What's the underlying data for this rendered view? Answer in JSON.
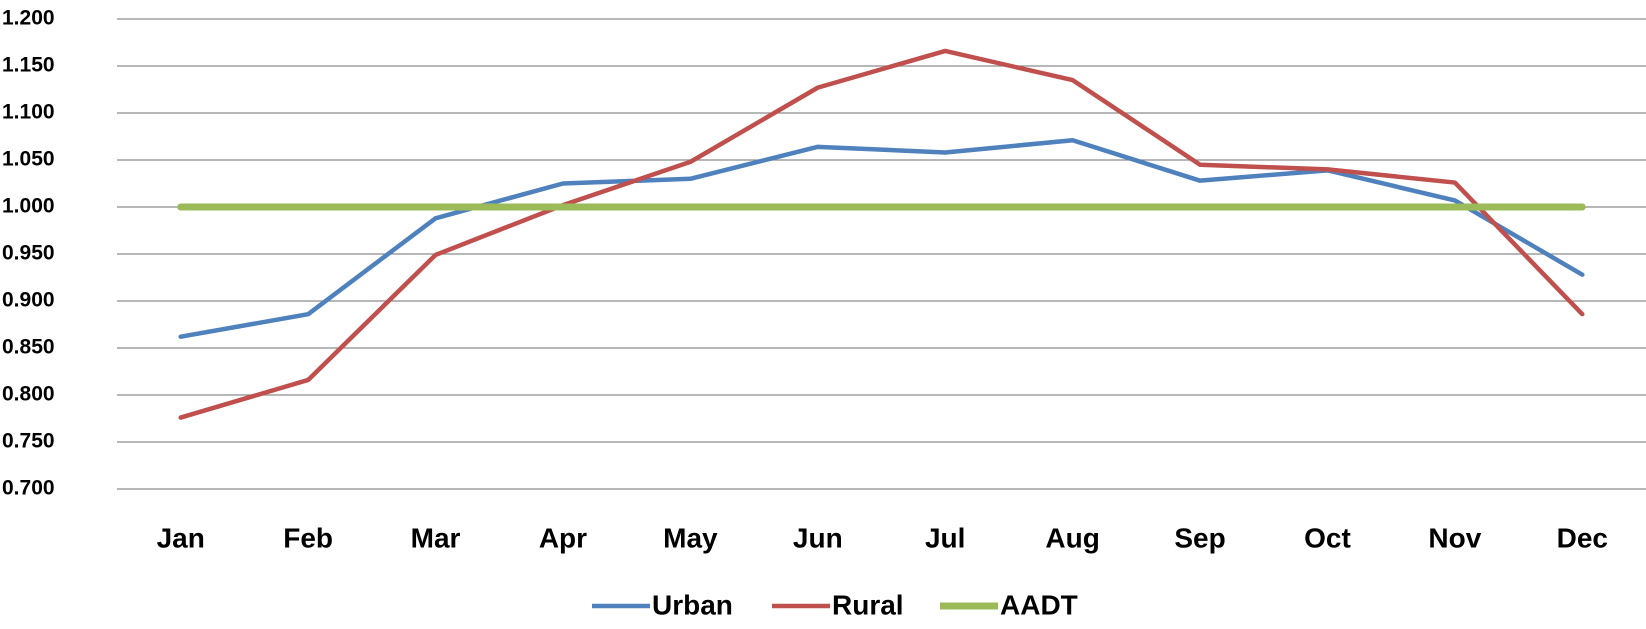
{
  "chart_data": {
    "type": "line",
    "categories": [
      "Jan",
      "Feb",
      "Mar",
      "Apr",
      "May",
      "Jun",
      "Jul",
      "Aug",
      "Sep",
      "Oct",
      "Nov",
      "Dec"
    ],
    "series": [
      {
        "name": "Urban",
        "color": "#4f81bd",
        "values": [
          0.862,
          0.886,
          0.988,
          1.025,
          1.03,
          1.064,
          1.058,
          1.071,
          1.028,
          1.039,
          1.007,
          0.928
        ]
      },
      {
        "name": "Rural",
        "color": "#c0504d",
        "values": [
          0.776,
          0.816,
          0.949,
          1.002,
          1.048,
          1.127,
          1.166,
          1.135,
          1.045,
          1.04,
          1.026,
          0.886
        ]
      },
      {
        "name": "AADT",
        "color": "#9bbb59",
        "values": [
          1.0,
          1.0,
          1.0,
          1.0,
          1.0,
          1.0,
          1.0,
          1.0,
          1.0,
          1.0,
          1.0,
          1.0
        ]
      }
    ],
    "ylim": [
      0.7,
      1.2
    ],
    "yticks": [
      {
        "value": 0.7,
        "label": "0.700"
      },
      {
        "value": 0.75,
        "label": "0.750"
      },
      {
        "value": 0.8,
        "label": "0.800"
      },
      {
        "value": 0.85,
        "label": "0.850"
      },
      {
        "value": 0.9,
        "label": "0.900"
      },
      {
        "value": 0.95,
        "label": "0.950"
      },
      {
        "value": 1.0,
        "label": "1.000"
      },
      {
        "value": 1.05,
        "label": "1.050"
      },
      {
        "value": 1.1,
        "label": "1.100"
      },
      {
        "value": 1.15,
        "label": "1.150"
      },
      {
        "value": 1.2,
        "label": "1.200"
      }
    ],
    "grid": true,
    "legend": "bottom"
  }
}
